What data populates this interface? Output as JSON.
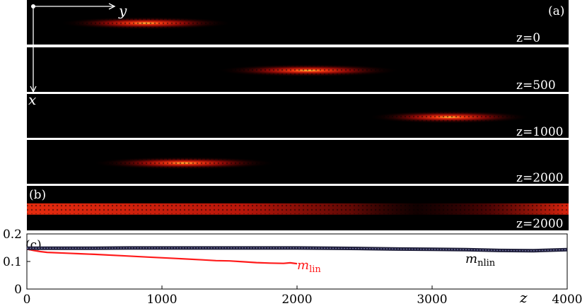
{
  "figure": {
    "panel_a_label": "(a)",
    "panel_b_label": "(b)",
    "panel_c_label": "(c)",
    "axis_y_label": "y",
    "axis_x_label": "x",
    "strip_z_labels": [
      "z=0",
      "z=500",
      "z=1000",
      "z=2000",
      "z=2000"
    ]
  },
  "intensity_strips": [
    {
      "panel": "a",
      "z": 0,
      "beam_center_y_fraction": 0.22,
      "beam_width_fraction": 0.16
    },
    {
      "panel": "a",
      "z": 500,
      "beam_center_y_fraction": 0.52,
      "beam_width_fraction": 0.17
    },
    {
      "panel": "a",
      "z": 1000,
      "beam_center_y_fraction": 0.78,
      "beam_width_fraction": 0.15
    },
    {
      "panel": "a",
      "z": 2000,
      "beam_center_y_fraction": 0.29,
      "beam_width_fraction": 0.17
    },
    {
      "panel": "b",
      "z": 2000,
      "beam_center_y_fraction": 0.5,
      "beam_width_fraction": 0.9
    }
  ],
  "chart_data": {
    "type": "line",
    "panel": "(c)",
    "xlabel": "z",
    "ylabel": "",
    "xlim": [
      0,
      4000
    ],
    "ylim": [
      0,
      0.2
    ],
    "xticks": [
      0,
      1000,
      2000,
      3000,
      4000
    ],
    "yticks": [
      0,
      0.1,
      0.2
    ],
    "grid": false,
    "series": [
      {
        "name": "m_lin",
        "label_main": "m",
        "label_sub": "lin",
        "color": "#ff1a1a",
        "x": [
          0,
          50,
          100,
          150,
          200,
          300,
          400,
          500,
          700,
          900,
          1100,
          1300,
          1400,
          1500,
          1600,
          1700,
          1800,
          1900,
          1950,
          2000
        ],
        "y": [
          0.145,
          0.14,
          0.136,
          0.133,
          0.132,
          0.13,
          0.128,
          0.126,
          0.121,
          0.116,
          0.111,
          0.106,
          0.103,
          0.102,
          0.099,
          0.096,
          0.094,
          0.093,
          0.095,
          0.092
        ]
      },
      {
        "name": "m_nlin",
        "label_main": "m",
        "label_sub": "nlin",
        "color": "#1f1f3a",
        "x": [
          0,
          250,
          500,
          750,
          1000,
          1250,
          1500,
          1750,
          2000,
          2250,
          2500,
          2750,
          3000,
          3250,
          3500,
          3750,
          4000
        ],
        "y": [
          0.148,
          0.148,
          0.148,
          0.149,
          0.149,
          0.149,
          0.149,
          0.149,
          0.149,
          0.148,
          0.147,
          0.145,
          0.144,
          0.143,
          0.14,
          0.139,
          0.143
        ]
      }
    ]
  }
}
